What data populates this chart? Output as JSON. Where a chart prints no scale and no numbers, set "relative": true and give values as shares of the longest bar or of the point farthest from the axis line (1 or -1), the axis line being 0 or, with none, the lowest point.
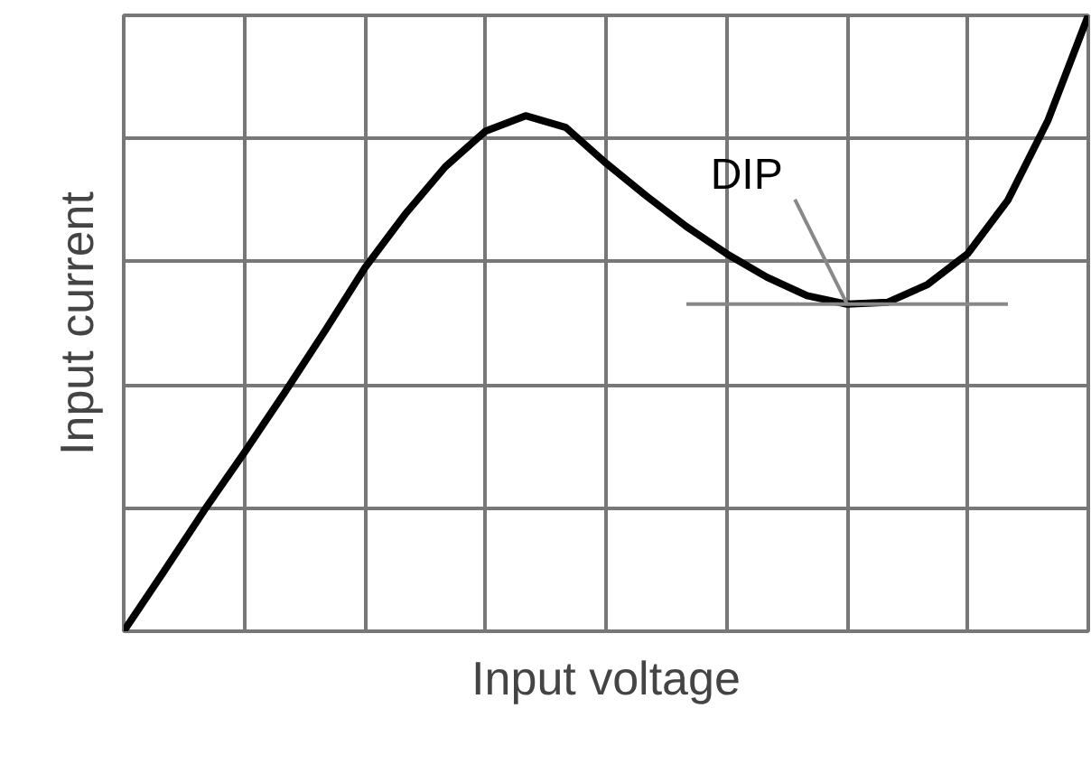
{
  "chart_data": {
    "type": "line",
    "relative": true,
    "xlabel": "Input voltage",
    "ylabel": "Input current",
    "grid": true,
    "marker": "none",
    "line_style": "solid",
    "annotations": [
      "DIP"
    ],
    "categories": [
      null,
      null,
      null,
      null,
      null,
      null,
      null,
      null,
      null,
      null,
      null,
      null,
      null,
      null,
      null,
      null,
      null,
      null,
      null,
      null,
      null,
      null,
      null,
      null,
      null
    ],
    "series": [
      {
        "color": "#000000",
        "values": [
          0,
          0.097,
          0.196,
          0.29,
          0.387,
          0.487,
          0.59,
          0.677,
          0.754,
          0.812,
          0.837,
          0.818,
          0.76,
          0.707,
          0.657,
          0.613,
          0.575,
          0.545,
          0.531,
          0.534,
          0.563,
          0.613,
          0.7,
          0.83,
          1
        ]
      },
      {
        "type": "line",
        "color": "#888888",
        "values": [
          null,
          null,
          null,
          null,
          null,
          null,
          null,
          null,
          null,
          null,
          null,
          null,
          null,
          null,
          0.531,
          0.531,
          0.531,
          0.531,
          0.531,
          0.531,
          0.531,
          0.531,
          0.531,
          null,
          null
        ]
      }
    ]
  }
}
